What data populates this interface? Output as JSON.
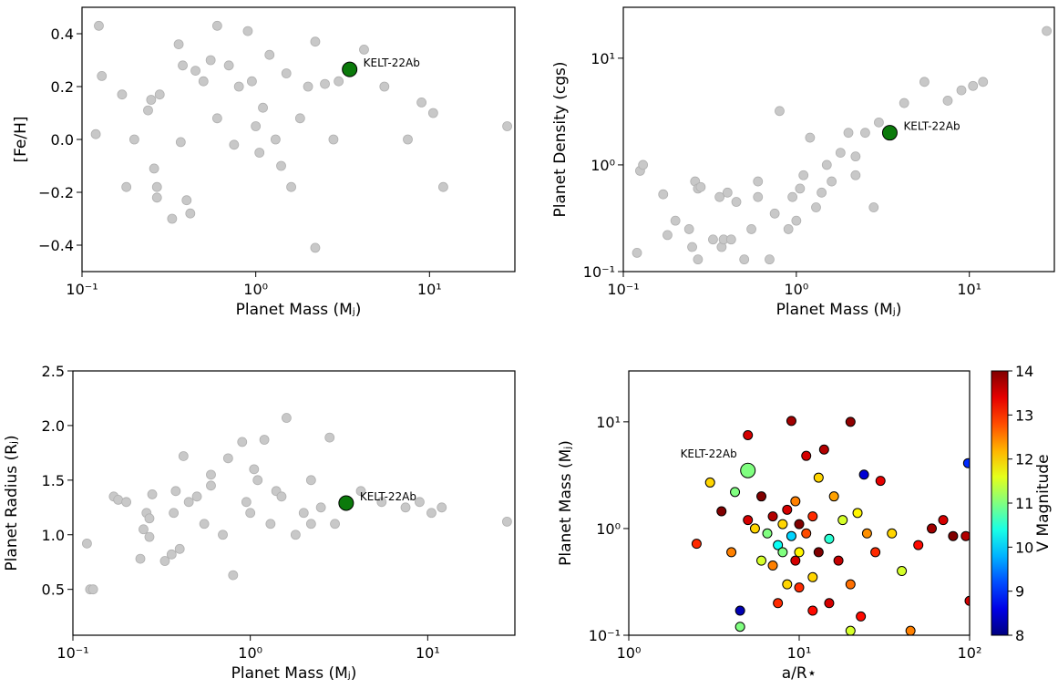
{
  "chart_data": [
    {
      "type": "scatter",
      "xlabel": "Planet Mass (Mⱼ)",
      "ylabel": "[Fe/H]",
      "xscale": "log",
      "yscale": "linear",
      "xlim": [
        0.1,
        31
      ],
      "ylim": [
        -0.5,
        0.5
      ],
      "xticks": [
        {
          "value": 0.1,
          "label": "10⁻¹"
        },
        {
          "value": 1,
          "label": "10⁰"
        },
        {
          "value": 10,
          "label": "10¹"
        }
      ],
      "yticks": [
        {
          "value": -0.4,
          "label": "−0.4"
        },
        {
          "value": -0.2,
          "label": "−0.2"
        },
        {
          "value": 0,
          "label": "0.0"
        },
        0.2,
        0.4
      ],
      "color": "#c8c8c8",
      "x": [
        0.12,
        0.125,
        0.13,
        0.17,
        0.18,
        0.2,
        0.24,
        0.25,
        0.26,
        0.27,
        0.27,
        0.28,
        0.33,
        0.36,
        0.37,
        0.38,
        0.4,
        0.42,
        0.45,
        0.5,
        0.55,
        0.6,
        0.6,
        0.7,
        0.75,
        0.8,
        0.9,
        0.95,
        1.0,
        1.05,
        1.1,
        1.2,
        1.3,
        1.4,
        1.5,
        1.6,
        1.8,
        2.0,
        2.2,
        2.2,
        2.5,
        2.8,
        3.0,
        4.2,
        5.5,
        7.5,
        9.0,
        10.5,
        12,
        28
      ],
      "y": [
        0.02,
        0.43,
        0.24,
        0.17,
        -0.18,
        0.0,
        0.11,
        0.15,
        -0.11,
        -0.18,
        -0.22,
        0.17,
        -0.3,
        0.36,
        -0.01,
        0.28,
        -0.23,
        -0.28,
        0.26,
        0.22,
        0.3,
        0.43,
        0.08,
        0.28,
        -0.02,
        0.2,
        0.41,
        0.22,
        0.05,
        -0.05,
        0.12,
        0.32,
        0.0,
        -0.1,
        0.25,
        -0.18,
        0.08,
        0.2,
        -0.41,
        0.37,
        0.21,
        0.0,
        0.22,
        0.34,
        0.2,
        0.0,
        0.14,
        0.1,
        -0.18,
        0.05
      ],
      "highlight": {
        "label": "KELT-22Ab",
        "x": 3.47,
        "y": 0.265,
        "color": "#0b7a0b"
      }
    },
    {
      "type": "scatter",
      "xlabel": "Planet Mass (Mⱼ)",
      "ylabel": "Planet Density (cgs)",
      "xscale": "log",
      "yscale": "log",
      "xlim": [
        0.1,
        31
      ],
      "ylim": [
        0.1,
        30
      ],
      "xticks": [
        {
          "value": 0.1,
          "label": "10⁻¹"
        },
        {
          "value": 1,
          "label": "10⁰"
        },
        {
          "value": 10,
          "label": "10¹"
        }
      ],
      "yticks": [
        {
          "value": 0.1,
          "label": "10⁻¹"
        },
        {
          "value": 1,
          "label": "10⁰"
        },
        {
          "value": 10,
          "label": "10¹"
        }
      ],
      "color": "#c8c8c8",
      "x": [
        0.12,
        0.125,
        0.13,
        0.17,
        0.18,
        0.2,
        0.24,
        0.25,
        0.26,
        0.27,
        0.27,
        0.28,
        0.33,
        0.36,
        0.37,
        0.38,
        0.4,
        0.42,
        0.45,
        0.5,
        0.55,
        0.6,
        0.6,
        0.7,
        0.75,
        0.8,
        0.9,
        0.95,
        1.0,
        1.05,
        1.1,
        1.2,
        1.3,
        1.4,
        1.5,
        1.6,
        1.8,
        2.0,
        2.2,
        2.2,
        2.5,
        2.8,
        3.0,
        4.2,
        5.5,
        7.5,
        9.0,
        10.5,
        12,
        28
      ],
      "y": [
        0.15,
        0.88,
        1.0,
        0.53,
        0.22,
        0.3,
        0.25,
        0.17,
        0.7,
        0.6,
        0.13,
        0.62,
        0.2,
        0.5,
        0.17,
        0.2,
        0.55,
        0.2,
        0.45,
        0.13,
        0.25,
        0.5,
        0.7,
        0.13,
        0.35,
        3.2,
        0.25,
        0.5,
        0.3,
        0.6,
        0.8,
        1.8,
        0.4,
        0.55,
        1.0,
        0.7,
        1.3,
        2.0,
        0.8,
        1.2,
        2.0,
        0.4,
        2.5,
        3.8,
        6.0,
        4.0,
        5.0,
        5.5,
        6.0,
        18
      ],
      "highlight": {
        "label": "KELT-22Ab",
        "x": 3.47,
        "y": 2.0,
        "color": "#0b7a0b"
      }
    },
    {
      "type": "scatter",
      "xlabel": "Planet Mass (Mⱼ)",
      "ylabel": "Planet Radius (Rⱼ)",
      "xscale": "log",
      "yscale": "linear",
      "xlim": [
        0.1,
        31
      ],
      "ylim": [
        0.08,
        2.5
      ],
      "xticks": [
        {
          "value": 0.1,
          "label": "10⁻¹"
        },
        {
          "value": 1,
          "label": "10⁰"
        },
        {
          "value": 10,
          "label": "10¹"
        }
      ],
      "yticks": [
        0.5,
        {
          "value": 1,
          "label": "1.0"
        },
        1.5,
        {
          "value": 2,
          "label": "2.0"
        },
        2.5
      ],
      "color": "#c8c8c8",
      "x": [
        0.12,
        0.125,
        0.13,
        0.17,
        0.18,
        0.2,
        0.24,
        0.25,
        0.26,
        0.27,
        0.27,
        0.28,
        0.33,
        0.36,
        0.37,
        0.38,
        0.4,
        0.42,
        0.45,
        0.5,
        0.55,
        0.6,
        0.6,
        0.7,
        0.75,
        0.8,
        0.9,
        0.95,
        1.0,
        1.05,
        1.1,
        1.2,
        1.3,
        1.4,
        1.5,
        1.6,
        1.8,
        2.0,
        2.2,
        2.2,
        2.5,
        2.8,
        3.0,
        4.2,
        5.5,
        7.5,
        9.0,
        10.5,
        12,
        28
      ],
      "y": [
        0.92,
        0.5,
        0.5,
        1.35,
        1.32,
        1.3,
        0.78,
        1.05,
        1.2,
        0.98,
        1.15,
        1.37,
        0.76,
        0.82,
        1.2,
        1.4,
        0.87,
        1.72,
        1.3,
        1.35,
        1.1,
        1.55,
        1.45,
        1.0,
        1.7,
        0.63,
        1.85,
        1.3,
        1.2,
        1.6,
        1.5,
        1.87,
        1.1,
        1.4,
        1.35,
        2.07,
        1.0,
        1.2,
        1.1,
        1.5,
        1.25,
        1.89,
        1.1,
        1.4,
        1.3,
        1.25,
        1.3,
        1.2,
        1.25,
        1.12
      ],
      "highlight": {
        "label": "KELT-22Ab",
        "x": 3.47,
        "y": 1.29,
        "color": "#0b7a0b"
      }
    },
    {
      "type": "scatter",
      "xlabel": "a/R⋆",
      "ylabel": "Planet Mass (Mⱼ)",
      "xscale": "log",
      "yscale": "log",
      "xlim": [
        1,
        100
      ],
      "ylim": [
        0.1,
        30
      ],
      "xticks": [
        {
          "value": 1,
          "label": "10⁰"
        },
        {
          "value": 10,
          "label": "10¹"
        },
        {
          "value": 100,
          "label": "10²"
        }
      ],
      "yticks": [
        {
          "value": 0.1,
          "label": "10⁻¹"
        },
        {
          "value": 1,
          "label": "10⁰"
        },
        {
          "value": 10,
          "label": "10¹"
        }
      ],
      "colormap": "jet",
      "clim": [
        8,
        14
      ],
      "colorbar": {
        "label": "V Magnitude",
        "ticks": [
          8,
          9,
          10,
          11,
          12,
          13,
          14
        ]
      },
      "x": [
        2.5,
        3,
        3.5,
        4,
        4.2,
        4.5,
        5,
        5,
        5.5,
        6,
        6,
        6.5,
        7,
        7,
        7.5,
        7.5,
        8,
        8,
        8.5,
        8.5,
        9,
        9,
        9.5,
        9.5,
        10,
        10,
        10,
        11,
        11,
        12,
        12,
        13,
        13,
        14,
        15,
        15,
        16,
        17,
        18,
        20,
        20,
        22,
        23,
        24,
        25,
        28,
        30,
        35,
        40,
        45,
        50,
        60,
        70,
        80,
        95,
        98,
        100,
        4.5,
        20,
        12
      ],
      "y": [
        0.72,
        2.7,
        1.45,
        0.6,
        2.2,
        0.17,
        1.2,
        7.5,
        1.0,
        0.5,
        2.0,
        0.9,
        1.3,
        0.45,
        0.7,
        0.2,
        1.1,
        0.6,
        1.5,
        0.3,
        0.85,
        10.2,
        1.8,
        0.5,
        0.6,
        1.1,
        0.28,
        0.9,
        4.8,
        1.3,
        0.35,
        3.0,
        0.6,
        5.5,
        0.8,
        0.2,
        2.0,
        0.5,
        1.2,
        10,
        0.3,
        1.4,
        0.15,
        3.2,
        0.9,
        0.6,
        2.8,
        0.9,
        0.4,
        0.11,
        0.7,
        1.0,
        1.2,
        0.85,
        0.85,
        4.1,
        0.21,
        0.12,
        0.11,
        0.17
      ],
      "c": [
        13,
        12,
        14,
        12.5,
        11,
        8.3,
        13.5,
        13.5,
        12,
        11.5,
        14,
        11,
        13.7,
        12.5,
        10.3,
        13,
        12,
        11,
        13.5,
        12,
        10,
        13.8,
        12.5,
        13.5,
        11.8,
        14,
        13,
        12.8,
        13.5,
        13,
        12,
        12,
        14,
        13.7,
        10.5,
        13.5,
        12.3,
        13.6,
        11.5,
        13.9,
        12.6,
        11.8,
        13.2,
        8.5,
        12.4,
        13,
        13.4,
        12,
        11.5,
        12.5,
        13.2,
        13.8,
        13.5,
        14,
        13.7,
        9,
        13.5,
        11,
        11.5,
        13.2
      ],
      "highlight": {
        "label": "KELT-22Ab",
        "x": 5,
        "y": 3.5,
        "c": 11
      }
    }
  ]
}
